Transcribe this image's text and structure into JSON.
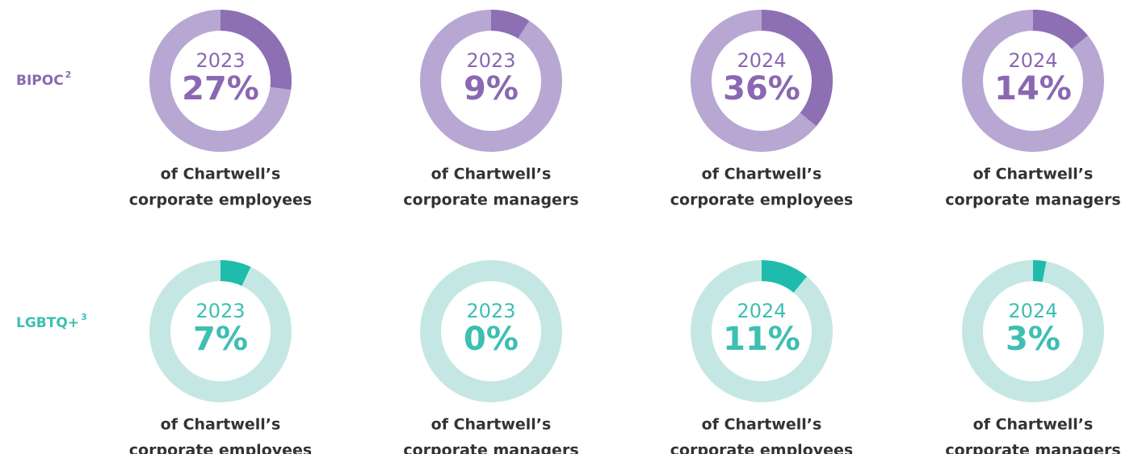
{
  "chart_data": [
    {
      "type": "donut",
      "title": "BIPOC",
      "title_note": "2",
      "color": "#8d6fb4",
      "track_color": "#b8a6d3",
      "text_color": "#8a68b2",
      "categories": [
        "2023",
        "2023",
        "2024",
        "2024"
      ],
      "values": [
        27,
        9,
        36,
        14
      ],
      "value_labels": [
        "27%",
        "9%",
        "36%",
        "14%"
      ],
      "captions": [
        [
          "of Chartwell’s",
          "corporate employees"
        ],
        [
          "of Chartwell’s",
          "corporate managers"
        ],
        [
          "of Chartwell’s",
          "corporate employees"
        ],
        [
          "of Chartwell’s",
          "corporate managers"
        ]
      ]
    },
    {
      "type": "donut",
      "title": "LGBTQ+",
      "title_note": "3",
      "color": "#1fbcad",
      "track_color": "#c5e7e3",
      "text_color": "#3dbfb2",
      "categories": [
        "2023",
        "2023",
        "2024",
        "2024"
      ],
      "values": [
        7,
        0,
        11,
        3
      ],
      "value_labels": [
        "7%",
        "0%",
        "11%",
        "3%"
      ],
      "captions": [
        [
          "of Chartwell’s",
          "corporate employees"
        ],
        [
          "of Chartwell’s",
          "corporate managers"
        ],
        [
          "of Chartwell’s",
          "corporate employees"
        ],
        [
          "of Chartwell’s",
          "corporate managers"
        ]
      ]
    }
  ]
}
